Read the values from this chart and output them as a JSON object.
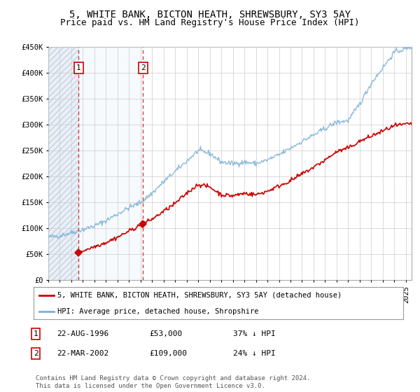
{
  "title": "5, WHITE BANK, BICTON HEATH, SHREWSBURY, SY3 5AY",
  "subtitle": "Price paid vs. HM Land Registry's House Price Index (HPI)",
  "ylim": [
    0,
    450000
  ],
  "yticks": [
    0,
    50000,
    100000,
    150000,
    200000,
    250000,
    300000,
    350000,
    400000,
    450000
  ],
  "ytick_labels": [
    "£0",
    "£50K",
    "£100K",
    "£150K",
    "£200K",
    "£250K",
    "£300K",
    "£350K",
    "£400K",
    "£450K"
  ],
  "xlim_start": 1994.0,
  "xlim_end": 2025.5,
  "hpi_color": "#7ab0d4",
  "price_color": "#cc0000",
  "grid_color": "#cccccc",
  "bg_color": "#ffffff",
  "purchase1_date_num": 1996.64,
  "purchase1_price": 53000,
  "purchase2_date_num": 2002.22,
  "purchase2_price": 109000,
  "legend_label_price": "5, WHITE BANK, BICTON HEATH, SHREWSBURY, SY3 5AY (detached house)",
  "legend_label_hpi": "HPI: Average price, detached house, Shropshire",
  "table_row1": [
    "1",
    "22-AUG-1996",
    "£53,000",
    "37% ↓ HPI"
  ],
  "table_row2": [
    "2",
    "22-MAR-2002",
    "£109,000",
    "24% ↓ HPI"
  ],
  "footnote": "Contains HM Land Registry data © Crown copyright and database right 2024.\nThis data is licensed under the Open Government Licence v3.0.",
  "title_fontsize": 10,
  "subtitle_fontsize": 9,
  "tick_fontsize": 7.5,
  "legend_fontsize": 7.5,
  "table_fontsize": 8,
  "footnote_fontsize": 6.5,
  "hpi_anchors_x": [
    1994,
    1995,
    1996,
    1997,
    1998,
    1999,
    2000,
    2001,
    2002,
    2003,
    2004,
    2005,
    2006,
    2007,
    2008,
    2009,
    2010,
    2011,
    2012,
    2013,
    2014,
    2015,
    2016,
    2017,
    2018,
    2019,
    2020,
    2021,
    2022,
    2023,
    2024,
    2025.5
  ],
  "hpi_anchors_y": [
    83000,
    86000,
    92000,
    98000,
    105000,
    115000,
    128000,
    140000,
    150000,
    168000,
    190000,
    210000,
    230000,
    250000,
    245000,
    228000,
    225000,
    228000,
    225000,
    232000,
    242000,
    255000,
    268000,
    280000,
    293000,
    305000,
    308000,
    340000,
    380000,
    410000,
    440000,
    450000
  ],
  "price_anchors_x": [
    1996.64,
    1997,
    1998,
    1999,
    2000,
    2001,
    2002.22,
    2003,
    2004,
    2005,
    2006,
    2007,
    2008,
    2009,
    2010,
    2011,
    2012,
    2013,
    2014,
    2015,
    2016,
    2017,
    2018,
    2019,
    2020,
    2021,
    2022,
    2023,
    2024,
    2025.5
  ],
  "price_anchors_y": [
    53000,
    57000,
    65000,
    73000,
    83000,
    95000,
    109000,
    118000,
    133000,
    148000,
    168000,
    185000,
    180000,
    165000,
    163000,
    168000,
    165000,
    172000,
    182000,
    192000,
    205000,
    218000,
    232000,
    248000,
    255000,
    268000,
    278000,
    288000,
    298000,
    302000
  ]
}
